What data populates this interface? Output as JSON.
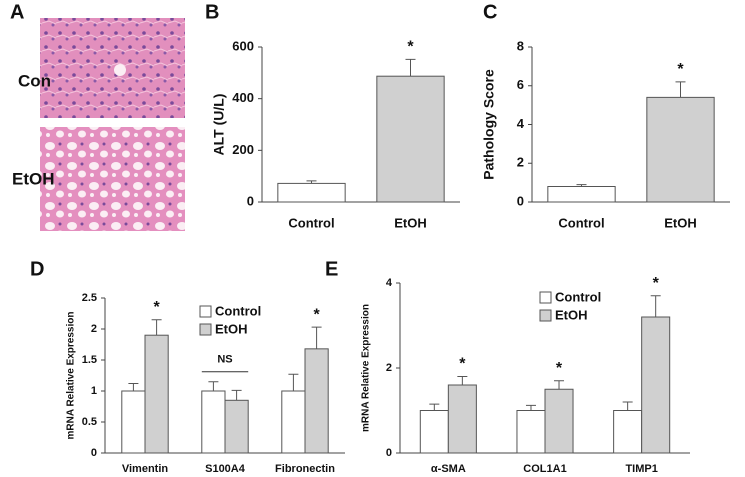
{
  "panel_a": {
    "label": "A",
    "rows": [
      "Con",
      "EtOH"
    ]
  },
  "chart_data": [
    {
      "type": "bar",
      "label": "B",
      "ylabel": "ALT (U/L)",
      "categories": [
        "Control",
        "EtOH"
      ],
      "values": [
        72,
        487
      ],
      "errors": [
        10,
        65
      ],
      "colors": [
        "#ffffff",
        "#d0d0d0"
      ],
      "annotations": [
        null,
        "*"
      ],
      "ylim": [
        0,
        600
      ],
      "yticks": [
        0,
        200,
        400,
        600
      ]
    },
    {
      "type": "bar",
      "label": "C",
      "ylabel": "Pathology Score",
      "categories": [
        "Control",
        "EtOH"
      ],
      "values": [
        0.8,
        5.4
      ],
      "errors": [
        0.1,
        0.8
      ],
      "colors": [
        "#ffffff",
        "#d0d0d0"
      ],
      "annotations": [
        null,
        "*"
      ],
      "ylim": [
        0,
        8
      ],
      "yticks": [
        0,
        2,
        4,
        6,
        8
      ]
    },
    {
      "type": "bar",
      "label": "D",
      "ylabel": "mRNA Relative Expression",
      "categories": [
        "Vimentin",
        "S100A4",
        "Fibronectin"
      ],
      "series": [
        {
          "name": "Control",
          "color": "#ffffff",
          "values": [
            1,
            1,
            1
          ],
          "errors": [
            0.12,
            0.15,
            0.27
          ]
        },
        {
          "name": "EtOH",
          "color": "#d0d0d0",
          "values": [
            1.9,
            0.85,
            1.68
          ],
          "errors": [
            0.25,
            0.16,
            0.35
          ]
        }
      ],
      "annotations": [
        "*",
        "NS",
        "*"
      ],
      "ylim": [
        0,
        2.5
      ],
      "yticks": [
        0,
        0.5,
        1,
        1.5,
        2,
        2.5
      ]
    },
    {
      "type": "bar",
      "label": "E",
      "ylabel": "mRNA Relative Expression",
      "categories": [
        "α-SMA",
        "COL1A1",
        "TIMP1"
      ],
      "series": [
        {
          "name": "Control",
          "color": "#ffffff",
          "values": [
            1,
            1,
            1
          ],
          "errors": [
            0.15,
            0.12,
            0.2
          ]
        },
        {
          "name": "EtOH",
          "color": "#d0d0d0",
          "values": [
            1.6,
            1.5,
            3.2
          ],
          "errors": [
            0.2,
            0.2,
            0.5
          ]
        }
      ],
      "annotations": [
        "*",
        "*",
        "*"
      ],
      "ylim": [
        0,
        4
      ],
      "yticks": [
        0,
        2,
        4
      ]
    }
  ]
}
